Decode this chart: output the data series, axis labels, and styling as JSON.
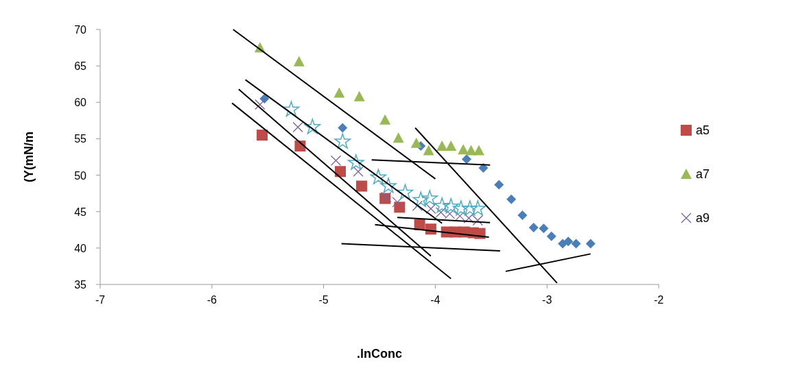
{
  "chart_data": {
    "type": "scatter",
    "xlabel": ".lnConc",
    "ylabel": "(Y(mN/m",
    "xlim": [
      -7,
      -2
    ],
    "xticks": [
      -7,
      -6,
      -5,
      -4,
      -3,
      -2
    ],
    "ylim": [
      35,
      70
    ],
    "yticks": [
      35,
      40,
      45,
      50,
      55,
      60,
      65,
      70
    ],
    "grid": false,
    "legend": "right",
    "series": [
      {
        "color": "#4a7ebb",
        "marker": "diamond",
        "x": [
          -5.53,
          -4.83,
          -4.13,
          -3.72,
          -3.57,
          -3.43,
          -3.32,
          -3.22,
          -3.12,
          -3.03,
          -2.96,
          -2.86,
          -2.81,
          -2.74,
          -2.61
        ],
        "values": [
          60.5,
          56.5,
          54.0,
          52.2,
          51.0,
          48.7,
          46.7,
          44.5,
          42.8,
          42.7,
          41.6,
          40.6,
          40.9,
          40.6,
          40.6
        ]
      },
      {
        "name": "a5",
        "color": "#be4b48",
        "marker": "square",
        "x": [
          -5.55,
          -5.21,
          -4.85,
          -4.66,
          -4.45,
          -4.32,
          -4.14,
          -4.04,
          -3.9,
          -3.82,
          -3.74,
          -3.66,
          -3.6
        ],
        "values": [
          55.5,
          54.0,
          50.5,
          48.5,
          46.8,
          45.6,
          43.2,
          42.6,
          42.2,
          42.2,
          42.2,
          42.1,
          42.0
        ]
      },
      {
        "name": "a7",
        "color": "#98b954",
        "marker": "triangle",
        "x": [
          -5.57,
          -5.22,
          -4.86,
          -4.68,
          -4.45,
          -4.33,
          -4.17,
          -4.06,
          -3.94,
          -3.86,
          -3.75,
          -3.68,
          -3.61
        ],
        "values": [
          67.5,
          65.6,
          61.3,
          60.8,
          57.6,
          55.1,
          54.4,
          53.4,
          54.0,
          54.0,
          53.5,
          53.4,
          53.4
        ]
      },
      {
        "name": "a9",
        "color": "#7d60a0",
        "marker": "cross",
        "x": [
          -5.57,
          -5.23,
          -4.89,
          -4.69,
          -4.44,
          -4.34,
          -4.16,
          -4.04,
          -3.95,
          -3.87,
          -3.78,
          -3.7,
          -3.62
        ],
        "values": [
          59.7,
          56.6,
          52.0,
          50.5,
          47.0,
          46.3,
          45.8,
          45.4,
          44.9,
          44.7,
          44.4,
          44.1,
          43.8
        ]
      },
      {
        "color": "#4bacc6",
        "marker": "star",
        "x": [
          -5.29,
          -5.1,
          -4.83,
          -4.71,
          -4.51,
          -4.42,
          -4.27,
          -4.13,
          -4.05,
          -3.94,
          -3.86,
          -3.77,
          -3.69,
          -3.62
        ],
        "values": [
          59.0,
          56.6,
          54.6,
          51.7,
          49.7,
          48.5,
          47.6,
          46.6,
          46.8,
          45.8,
          45.7,
          45.4,
          45.4,
          45.4
        ]
      },
      {
        "type": "line",
        "color": "#000000",
        "marker": "none",
        "x": [
          -5.81,
          -4.0
        ],
        "values": [
          70,
          49.5
        ]
      },
      {
        "type": "line",
        "color": "#000000",
        "marker": "none",
        "x": [
          -5.7,
          -3.94
        ],
        "values": [
          63.1,
          43.4
        ]
      },
      {
        "type": "line",
        "color": "#000000",
        "marker": "none",
        "x": [
          -5.76,
          -4.04
        ],
        "values": [
          61.8,
          38.9
        ]
      },
      {
        "type": "line",
        "color": "#000000",
        "marker": "none",
        "x": [
          -5.82,
          -3.86
        ],
        "values": [
          59.9,
          35.8
        ]
      },
      {
        "type": "line",
        "color": "#000000",
        "marker": "none",
        "x": [
          -4.57,
          -3.51
        ],
        "values": [
          52.1,
          51.4
        ]
      },
      {
        "type": "line",
        "color": "#000000",
        "marker": "none",
        "x": [
          -4.34,
          -3.51
        ],
        "values": [
          44.2,
          43.5
        ]
      },
      {
        "type": "line",
        "color": "#000000",
        "marker": "none",
        "x": [
          -4.54,
          -3.52
        ],
        "values": [
          43.2,
          41.5
        ]
      },
      {
        "type": "line",
        "color": "#000000",
        "marker": "none",
        "x": [
          -4.84,
          -3.42
        ],
        "values": [
          40.6,
          39.6
        ]
      },
      {
        "type": "line",
        "color": "#000000",
        "marker": "none",
        "x": [
          -4.18,
          -2.91
        ],
        "values": [
          56.5,
          35.2
        ]
      },
      {
        "type": "line",
        "color": "#000000",
        "marker": "none",
        "x": [
          -3.37,
          -2.61
        ],
        "values": [
          36.8,
          39.2
        ]
      }
    ]
  }
}
